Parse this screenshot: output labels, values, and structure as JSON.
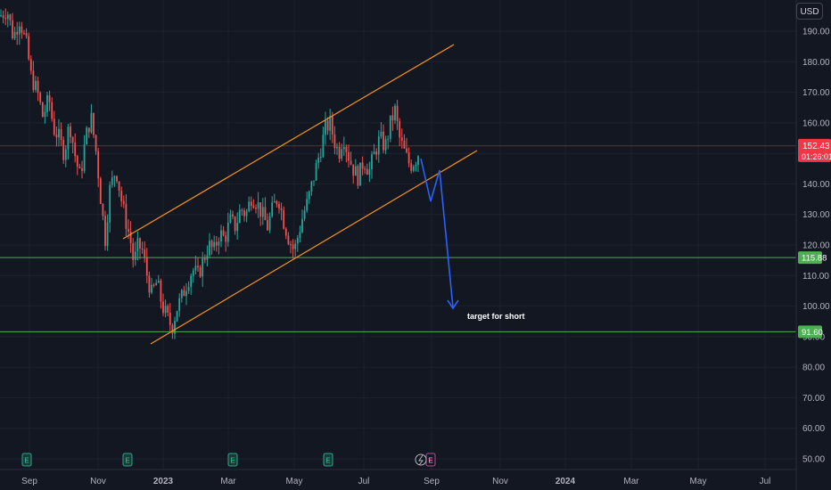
{
  "currency": "USD",
  "price_tag": {
    "price": "152.43",
    "countdown": "01:26:01",
    "color": "#f23645"
  },
  "chart_data": {
    "type": "candlestick",
    "x_ticks": [
      "Sep",
      "Nov",
      "2023",
      "Mar",
      "May",
      "Jul",
      "Sep",
      "Nov",
      "2024",
      "Mar",
      "May",
      "Jul"
    ],
    "y_ticks": [
      "190.00",
      "180.00",
      "170.00",
      "160.00",
      "150.00",
      "140.00",
      "130.00",
      "120.00",
      "110.00",
      "100.00",
      "90.00",
      "80.00",
      "70.00",
      "60.00",
      "50.00"
    ],
    "ylim": [
      47,
      200
    ],
    "current_price": 152.43,
    "horizontal_levels": [
      {
        "value": 115.88,
        "label": "115.88",
        "color": "#4caf50"
      },
      {
        "value": 91.6,
        "label": "91.60",
        "color": "#4caf50"
      }
    ],
    "channel_color": "#f7931a",
    "forecast_color": "#2962ff",
    "annotation": "target for short",
    "event_markers": [
      "E",
      "E",
      "E",
      "E",
      "E"
    ],
    "up_color": "#26a69a",
    "down_color": "#ef5350",
    "price_path": [
      [
        0,
        195
      ],
      [
        8,
        197
      ],
      [
        15,
        188
      ],
      [
        22,
        194
      ],
      [
        30,
        185
      ],
      [
        35,
        175
      ],
      [
        42,
        170
      ],
      [
        48,
        162
      ],
      [
        55,
        168
      ],
      [
        60,
        158
      ],
      [
        65,
        156
      ],
      [
        72,
        150
      ],
      [
        78,
        160
      ],
      [
        85,
        148
      ],
      [
        90,
        142
      ],
      [
        96,
        155
      ],
      [
        102,
        162
      ],
      [
        108,
        150
      ],
      [
        113,
        135
      ],
      [
        118,
        122
      ],
      [
        123,
        138
      ],
      [
        130,
        145
      ],
      [
        136,
        135
      ],
      [
        141,
        128
      ],
      [
        146,
        122
      ],
      [
        150,
        114
      ],
      [
        155,
        120
      ],
      [
        160,
        118
      ],
      [
        165,
        110
      ],
      [
        170,
        104
      ],
      [
        176,
        108
      ],
      [
        182,
        100
      ],
      [
        188,
        96
      ],
      [
        193,
        93
      ],
      [
        198,
        99
      ],
      [
        204,
        103
      ],
      [
        210,
        108
      ],
      [
        216,
        112
      ],
      [
        222,
        110
      ],
      [
        228,
        115
      ],
      [
        234,
        120
      ],
      [
        240,
        118
      ],
      [
        246,
        124
      ],
      [
        252,
        122
      ],
      [
        258,
        128
      ],
      [
        264,
        126
      ],
      [
        270,
        132
      ],
      [
        276,
        130
      ],
      [
        282,
        136
      ],
      [
        288,
        134
      ],
      [
        294,
        130
      ],
      [
        300,
        126
      ],
      [
        306,
        132
      ],
      [
        312,
        136
      ],
      [
        318,
        128
      ],
      [
        324,
        122
      ],
      [
        330,
        118
      ],
      [
        335,
        124
      ],
      [
        340,
        130
      ],
      [
        345,
        134
      ],
      [
        350,
        140
      ],
      [
        355,
        146
      ],
      [
        360,
        152
      ],
      [
        365,
        158
      ],
      [
        370,
        160
      ],
      [
        375,
        154
      ],
      [
        380,
        150
      ],
      [
        385,
        156
      ],
      [
        390,
        150
      ],
      [
        396,
        145
      ],
      [
        402,
        142
      ],
      [
        408,
        148
      ],
      [
        414,
        144
      ],
      [
        420,
        150
      ],
      [
        426,
        155
      ],
      [
        432,
        152
      ],
      [
        438,
        160
      ],
      [
        443,
        164
      ],
      [
        448,
        155
      ],
      [
        454,
        150
      ],
      [
        460,
        146
      ],
      [
        466,
        148
      ],
      [
        472,
        152
      ]
    ]
  }
}
